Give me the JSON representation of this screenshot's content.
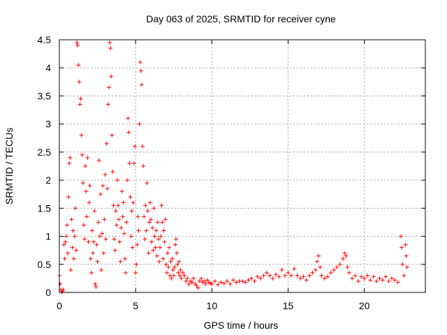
{
  "chart_data": {
    "type": "scatter",
    "title": "Day 063 of 2025, SRMTID for receiver cyne",
    "xlabel": "GPS time / hours",
    "ylabel": "SRMTID / TECUs",
    "xlim": [
      0,
      24
    ],
    "ylim": [
      0,
      4.5
    ],
    "xticks": [
      "0",
      "5",
      "10",
      "15",
      "20"
    ],
    "yticks": [
      "0",
      "0.5",
      "1",
      "1.5",
      "2",
      "2.5",
      "3",
      "3.5",
      "4",
      "4.5"
    ],
    "grid": true,
    "marker": "plus",
    "series": [
      {
        "name": "SRMTID",
        "color": "#ff0000",
        "points": [
          [
            0.0,
            0.3
          ],
          [
            0.05,
            0.15
          ],
          [
            0.1,
            0.05
          ],
          [
            0.15,
            0.0
          ],
          [
            0.2,
            0.02
          ],
          [
            0.25,
            0.05
          ],
          [
            0.3,
            0.85
          ],
          [
            0.35,
            0.6
          ],
          [
            0.4,
            0.9
          ],
          [
            0.45,
            1.0
          ],
          [
            0.5,
            1.2
          ],
          [
            0.55,
            0.7
          ],
          [
            0.6,
            1.7
          ],
          [
            0.65,
            2.3
          ],
          [
            0.7,
            2.4
          ],
          [
            0.75,
            0.4
          ],
          [
            0.8,
            1.3
          ],
          [
            0.85,
            0.8
          ],
          [
            0.9,
            1.1
          ],
          [
            0.95,
            0.6
          ],
          [
            1.0,
            1.0
          ],
          [
            1.05,
            1.5
          ],
          [
            1.1,
            0.75
          ],
          [
            1.15,
            4.45
          ],
          [
            1.2,
            4.4
          ],
          [
            1.25,
            4.05
          ],
          [
            1.3,
            3.75
          ],
          [
            1.35,
            3.35
          ],
          [
            1.4,
            3.45
          ],
          [
            1.45,
            2.8
          ],
          [
            1.5,
            2.45
          ],
          [
            1.55,
            1.95
          ],
          [
            1.6,
            1.2
          ],
          [
            1.65,
            0.95
          ],
          [
            1.7,
            2.25
          ],
          [
            1.75,
            1.8
          ],
          [
            1.8,
            1.35
          ],
          [
            1.85,
            2.4
          ],
          [
            1.9,
            0.9
          ],
          [
            1.95,
            1.6
          ],
          [
            2.0,
            1.9
          ],
          [
            2.05,
            0.6
          ],
          [
            2.1,
            0.35
          ],
          [
            2.15,
            1.1
          ],
          [
            2.2,
            0.7
          ],
          [
            2.25,
            0.9
          ],
          [
            2.3,
            1.45
          ],
          [
            2.35,
            0.15
          ],
          [
            2.4,
            0.1
          ],
          [
            2.45,
            0.85
          ],
          [
            2.5,
            0.55
          ],
          [
            2.55,
            1.25
          ],
          [
            2.6,
            2.35
          ],
          [
            2.65,
            1.0
          ],
          [
            2.7,
            1.75
          ],
          [
            2.75,
            0.4
          ],
          [
            2.8,
            1.05
          ],
          [
            2.85,
            1.9
          ],
          [
            2.9,
            0.7
          ],
          [
            2.95,
            1.3
          ],
          [
            3.0,
            2.1
          ],
          [
            3.05,
            0.95
          ],
          [
            3.1,
            2.65
          ],
          [
            3.15,
            1.85
          ],
          [
            3.2,
            3.35
          ],
          [
            3.25,
            3.65
          ],
          [
            3.3,
            4.45
          ],
          [
            3.35,
            4.35
          ],
          [
            3.4,
            3.85
          ],
          [
            3.45,
            2.8
          ],
          [
            3.5,
            2.15
          ],
          [
            3.55,
            1.55
          ],
          [
            3.6,
            0.95
          ],
          [
            3.65,
            0.75
          ],
          [
            3.7,
            1.45
          ],
          [
            3.75,
            1.2
          ],
          [
            3.8,
            2.0
          ],
          [
            3.85,
            1.55
          ],
          [
            3.9,
            1.3
          ],
          [
            3.95,
            0.9
          ],
          [
            4.0,
            0.55
          ],
          [
            4.05,
            1.15
          ],
          [
            4.1,
            1.8
          ],
          [
            4.15,
            1.35
          ],
          [
            4.2,
            1.6
          ],
          [
            4.25,
            1.05
          ],
          [
            4.3,
            0.6
          ],
          [
            4.35,
            0.35
          ],
          [
            4.4,
            1.25
          ],
          [
            4.45,
            2.0
          ],
          [
            4.5,
            3.1
          ],
          [
            4.55,
            2.85
          ],
          [
            4.6,
            2.3
          ],
          [
            4.65,
            1.7
          ],
          [
            4.7,
            1.0
          ],
          [
            4.75,
            1.45
          ],
          [
            4.8,
            0.8
          ],
          [
            4.85,
            1.6
          ],
          [
            4.9,
            2.3
          ],
          [
            4.95,
            2.6
          ],
          [
            5.0,
            0.35
          ],
          [
            5.05,
            0.5
          ],
          [
            5.1,
            0.85
          ],
          [
            5.15,
            1.35
          ],
          [
            5.2,
            1.1
          ],
          [
            5.25,
            3.0
          ],
          [
            5.3,
            4.1
          ],
          [
            5.35,
            3.95
          ],
          [
            5.4,
            3.7
          ],
          [
            5.45,
            2.6
          ],
          [
            5.5,
            2.25
          ],
          [
            5.55,
            1.35
          ],
          [
            5.6,
            0.95
          ],
          [
            5.65,
            1.55
          ],
          [
            5.7,
            1.1
          ],
          [
            5.75,
            1.95
          ],
          [
            5.8,
            1.45
          ],
          [
            5.85,
            0.7
          ],
          [
            5.9,
            1.25
          ],
          [
            5.95,
            1.6
          ],
          [
            6.0,
            1.3
          ],
          [
            6.05,
            0.9
          ],
          [
            6.1,
            1.15
          ],
          [
            6.15,
            0.75
          ],
          [
            6.2,
            1.5
          ],
          [
            6.25,
            1.0
          ],
          [
            6.3,
            0.8
          ],
          [
            6.35,
            1.1
          ],
          [
            6.4,
            0.65
          ],
          [
            6.45,
            1.25
          ],
          [
            6.5,
            0.95
          ],
          [
            6.55,
            0.55
          ],
          [
            6.6,
            0.8
          ],
          [
            6.65,
            1.0
          ],
          [
            6.7,
            1.55
          ],
          [
            6.75,
            1.25
          ],
          [
            6.8,
            0.6
          ],
          [
            6.85,
            1.1
          ],
          [
            6.9,
            0.9
          ],
          [
            6.95,
            1.3
          ],
          [
            7.0,
            0.5
          ],
          [
            7.05,
            0.35
          ],
          [
            7.1,
            0.7
          ],
          [
            7.15,
            0.45
          ],
          [
            7.2,
            0.8
          ],
          [
            7.25,
            0.3
          ],
          [
            7.3,
            0.55
          ],
          [
            7.35,
            0.25
          ],
          [
            7.4,
            0.6
          ],
          [
            7.45,
            0.4
          ],
          [
            7.5,
            0.3
          ],
          [
            7.55,
            0.45
          ],
          [
            7.6,
            0.85
          ],
          [
            7.65,
            0.95
          ],
          [
            7.7,
            0.7
          ],
          [
            7.75,
            0.5
          ],
          [
            7.8,
            0.35
          ],
          [
            7.85,
            0.55
          ],
          [
            7.9,
            0.3
          ],
          [
            7.95,
            0.4
          ],
          [
            8.0,
            0.25
          ],
          [
            8.1,
            0.35
          ],
          [
            8.2,
            0.3
          ],
          [
            8.3,
            0.2
          ],
          [
            8.4,
            0.25
          ],
          [
            8.5,
            0.15
          ],
          [
            8.6,
            0.2
          ],
          [
            8.7,
            0.18
          ],
          [
            8.8,
            0.25
          ],
          [
            8.9,
            0.15
          ],
          [
            9.0,
            0.12
          ],
          [
            9.1,
            0.08
          ],
          [
            9.2,
            0.2
          ],
          [
            9.3,
            0.25
          ],
          [
            9.4,
            0.18
          ],
          [
            9.5,
            0.2
          ],
          [
            9.6,
            0.15
          ],
          [
            9.7,
            0.22
          ],
          [
            9.8,
            0.18
          ],
          [
            9.9,
            0.16
          ],
          [
            10.0,
            0.15
          ],
          [
            10.2,
            0.2
          ],
          [
            10.4,
            0.14
          ],
          [
            10.6,
            0.18
          ],
          [
            10.8,
            0.16
          ],
          [
            11.0,
            0.2
          ],
          [
            11.2,
            0.15
          ],
          [
            11.4,
            0.22
          ],
          [
            11.6,
            0.18
          ],
          [
            11.8,
            0.2
          ],
          [
            12.0,
            0.2
          ],
          [
            12.2,
            0.18
          ],
          [
            12.4,
            0.22
          ],
          [
            12.6,
            0.25
          ],
          [
            12.8,
            0.2
          ],
          [
            13.0,
            0.28
          ],
          [
            13.2,
            0.25
          ],
          [
            13.4,
            0.3
          ],
          [
            13.6,
            0.35
          ],
          [
            13.8,
            0.3
          ],
          [
            14.0,
            0.25
          ],
          [
            14.2,
            0.32
          ],
          [
            14.4,
            0.28
          ],
          [
            14.6,
            0.4
          ],
          [
            14.8,
            0.3
          ],
          [
            15.0,
            0.35
          ],
          [
            15.2,
            0.3
          ],
          [
            15.4,
            0.42
          ],
          [
            15.6,
            0.3
          ],
          [
            15.8,
            0.25
          ],
          [
            16.0,
            0.28
          ],
          [
            16.2,
            0.22
          ],
          [
            16.4,
            0.3
          ],
          [
            16.6,
            0.35
          ],
          [
            16.8,
            0.4
          ],
          [
            16.9,
            0.55
          ],
          [
            17.0,
            0.65
          ],
          [
            17.1,
            0.45
          ],
          [
            17.2,
            0.3
          ],
          [
            17.4,
            0.25
          ],
          [
            17.6,
            0.28
          ],
          [
            17.8,
            0.35
          ],
          [
            18.0,
            0.4
          ],
          [
            18.2,
            0.45
          ],
          [
            18.4,
            0.5
          ],
          [
            18.6,
            0.6
          ],
          [
            18.7,
            0.7
          ],
          [
            18.8,
            0.65
          ],
          [
            18.9,
            0.45
          ],
          [
            19.0,
            0.35
          ],
          [
            19.2,
            0.25
          ],
          [
            19.4,
            0.3
          ],
          [
            19.6,
            0.2
          ],
          [
            19.8,
            0.28
          ],
          [
            20.0,
            0.25
          ],
          [
            20.2,
            0.3
          ],
          [
            20.4,
            0.22
          ],
          [
            20.6,
            0.28
          ],
          [
            20.8,
            0.2
          ],
          [
            21.0,
            0.25
          ],
          [
            21.2,
            0.22
          ],
          [
            21.4,
            0.28
          ],
          [
            21.6,
            0.2
          ],
          [
            21.8,
            0.25
          ],
          [
            22.0,
            0.22
          ],
          [
            22.2,
            0.18
          ],
          [
            22.4,
            1.0
          ],
          [
            22.45,
            0.8
          ],
          [
            22.5,
            0.5
          ],
          [
            22.6,
            0.3
          ],
          [
            22.7,
            0.85
          ],
          [
            22.75,
            0.65
          ],
          [
            22.8,
            0.45
          ]
        ]
      }
    ]
  }
}
